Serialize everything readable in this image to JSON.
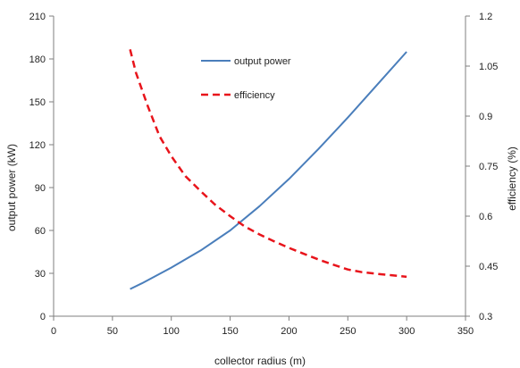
{
  "chart_data": {
    "type": "line",
    "xlabel": "collector radius (m)",
    "ylabel_left": "output power (kW)",
    "ylabel_right": "efficiency (%)",
    "xlim": [
      0,
      350
    ],
    "ylim_left": [
      0,
      210
    ],
    "ylim_right": [
      0.3,
      1.2
    ],
    "x_ticks": [
      "0",
      "50",
      "100",
      "150",
      "200",
      "250",
      "300",
      "350"
    ],
    "y_left_ticks": [
      "0",
      "30",
      "60",
      "90",
      "120",
      "150",
      "180",
      "210"
    ],
    "y_right_ticks": [
      "0.3",
      "0.45",
      "0.6",
      "0.75",
      "0.9",
      "1.05",
      "1.2"
    ],
    "grid": false,
    "legend_placement": "top-center",
    "series": [
      {
        "name": "output power",
        "axis": "left",
        "style": "solid",
        "color": "#4a7ebb",
        "x": [
          65,
          75,
          100,
          125,
          150,
          175,
          200,
          225,
          250,
          275,
          300
        ],
        "y": [
          19,
          23,
          34,
          46,
          60,
          77,
          96,
          117,
          139,
          162,
          185
        ]
      },
      {
        "name": "efficiency",
        "axis": "right",
        "style": "dashed",
        "color": "#e8141b",
        "x": [
          65,
          70,
          80,
          90,
          100,
          112,
          125,
          137,
          150,
          162,
          175,
          187,
          200,
          212,
          225,
          237,
          250,
          262,
          275,
          287,
          300
        ],
        "y": [
          1.1,
          1.03,
          0.93,
          0.84,
          0.78,
          0.72,
          0.675,
          0.635,
          0.6,
          0.57,
          0.545,
          0.525,
          0.505,
          0.488,
          0.47,
          0.455,
          0.44,
          0.432,
          0.427,
          0.423,
          0.418
        ]
      }
    ]
  }
}
